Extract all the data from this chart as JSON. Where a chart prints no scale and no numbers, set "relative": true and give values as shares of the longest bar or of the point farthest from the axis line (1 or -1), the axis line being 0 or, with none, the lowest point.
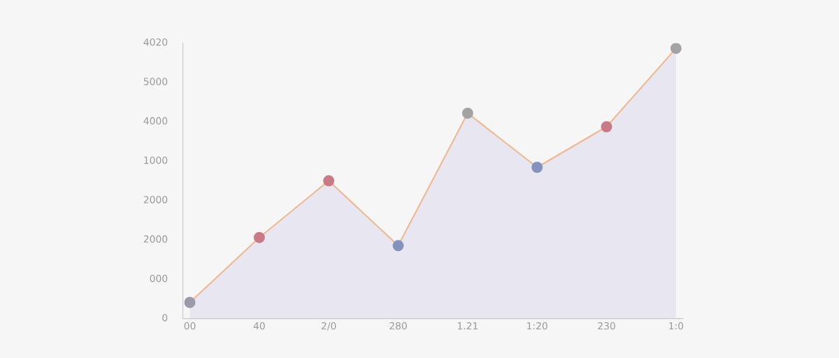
{
  "chart_data": {
    "type": "area",
    "categories": [
      "00",
      "40",
      "2/0",
      "280",
      "1.21",
      "1:20",
      "230",
      "1:0"
    ],
    "series": [
      {
        "color": "#f0b890",
        "colors": [
          "#9a9aaa",
          "#c97a87",
          "#c97a87",
          "#8393bd",
          "#a3a3a3",
          "#8393bd",
          "#c97a87",
          "#a3a3a3"
        ],
        "values": [
          0.06,
          0.3,
          0.51,
          0.27,
          0.76,
          0.56,
          0.71,
          1
        ]
      }
    ],
    "relative": true,
    "annotations": [
      "0",
      "000",
      "2000",
      "2000",
      "1000",
      "4000",
      "5000",
      "4020"
    ],
    "marker": "circle",
    "grid": false
  }
}
